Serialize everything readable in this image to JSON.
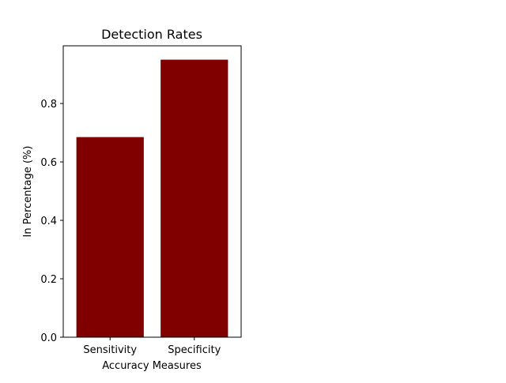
{
  "chart_data": {
    "type": "bar",
    "title": "Detection Rates",
    "xlabel": "Accuracy Measures",
    "ylabel": "In Percentage (%)",
    "categories": [
      "Sensitivity",
      "Specificity"
    ],
    "values": [
      0.685,
      0.95
    ],
    "ylim": [
      0,
      0.9975
    ],
    "yticks": [
      0.0,
      0.2,
      0.4,
      0.6,
      0.8
    ],
    "ytick_labels": [
      "0.0",
      "0.2",
      "0.4",
      "0.6",
      "0.8"
    ],
    "bar_color": "#800000",
    "grid": false,
    "legend": "none"
  }
}
